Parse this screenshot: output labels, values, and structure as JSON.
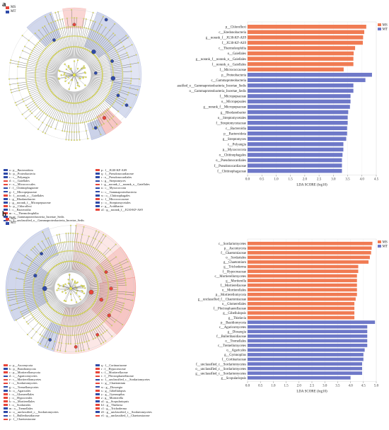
{
  "colors": {
    "MS": "#f07b53",
    "MT": "#6e78c8"
  },
  "panel_a": {
    "letter": "a",
    "legend": [
      {
        "label": "MS",
        "color": "#e8463a"
      },
      {
        "label": "MT",
        "color": "#2f4aa8"
      }
    ],
    "key_left": [
      {
        "text": "a : p__Bacteroidota",
        "group": "MT"
      },
      {
        "text": "b : p__Proteobacteria",
        "group": "MT"
      },
      {
        "text": "c : c__Polyangia",
        "group": "MT"
      },
      {
        "text": "d : c__Gaiellales",
        "group": "MS"
      },
      {
        "text": "e : o__Micrococcales",
        "group": "MS"
      },
      {
        "text": "f : f__Chitinophagaceae",
        "group": "MT"
      },
      {
        "text": "g : f__Micropepsaceae",
        "group": "MT"
      },
      {
        "text": "h : f__norank_o__Gaiellales",
        "group": "MS"
      },
      {
        "text": "i : g__Rhodanobacter",
        "group": "MT"
      },
      {
        "text": "j : g__norank_f__Micropepsaceae",
        "group": "MT"
      },
      {
        "text": "k : p__Chloroflexi",
        "group": "MS"
      },
      {
        "text": "l : c__Bacteroidia",
        "group": "MT"
      },
      {
        "text": "m : c__Thermoleophilia",
        "group": "MS"
      },
      {
        "text": "n : o__Gammaproteobacteria_Incertae_Sedis",
        "group": "MT"
      },
      {
        "text": "o : f__unclassified_o__Gammaproteobacteria_Incertae_Sedis",
        "group": "MT"
      }
    ],
    "key_right": [
      {
        "text": "p : f__JG30-KF-AS9",
        "group": "MS"
      },
      {
        "text": "q : f__Pseudonocardiaceae",
        "group": "MT"
      },
      {
        "text": "r : o__Pseudonocardiales",
        "group": "MT"
      },
      {
        "text": "s : g__Streptomyces",
        "group": "MT"
      },
      {
        "text": "t : g__norank_f__norank_o__Gaiellales",
        "group": "MS"
      },
      {
        "text": "u : c__Myxococcota",
        "group": "MT"
      },
      {
        "text": "v : c__Gammaproteobacteria",
        "group": "MT"
      },
      {
        "text": "w : o__Chitinophagales",
        "group": "MT"
      },
      {
        "text": "x : f__Micrococcaceae",
        "group": "MS"
      },
      {
        "text": "y : o__Streptomycetales",
        "group": "MT"
      },
      {
        "text": "z : g__Acidibacter",
        "group": "MT"
      },
      {
        "text": "a1 : g__norank_f__JG30-KF-AS9",
        "group": "MS"
      }
    ]
  },
  "panel_b": {
    "letter": "b",
    "legend": [
      {
        "label": "MS",
        "color": "#e8463a"
      },
      {
        "label": "MT",
        "color": "#2f4aa8"
      }
    ],
    "key_left": [
      {
        "text": "a : p__Ascomycota",
        "group": "MS"
      },
      {
        "text": "b : p__Basidiomycota",
        "group": "MT"
      },
      {
        "text": "c : p__Mortierellomycota",
        "group": "MS"
      },
      {
        "text": "d : c__Agaricomycetes",
        "group": "MT"
      },
      {
        "text": "e : c__Mortierellomycetes",
        "group": "MS"
      },
      {
        "text": "f : c__Sordariomycetes",
        "group": "MS"
      },
      {
        "text": "g : c__Tremellomycetes",
        "group": "MT"
      },
      {
        "text": "h : o__Agaricales",
        "group": "MT"
      },
      {
        "text": "i : o__Glomerellales",
        "group": "MS"
      },
      {
        "text": "j : o__Hypocreales",
        "group": "MS"
      },
      {
        "text": "k : o__Mortierellales",
        "group": "MS"
      },
      {
        "text": "l : o__Sordariales",
        "group": "MS"
      },
      {
        "text": "m : o__Tremellales",
        "group": "MT"
      },
      {
        "text": "n : o__unclassified_c__Sordariomycetes",
        "group": "MT"
      },
      {
        "text": "o : f__Bulleribasidiaceae",
        "group": "MT"
      },
      {
        "text": "p : f__Chaetomiaceae",
        "group": "MS"
      }
    ],
    "key_right": [
      {
        "text": "q : f__Cortinariaceae",
        "group": "MT"
      },
      {
        "text": "r : f__Hypocreaceae",
        "group": "MS"
      },
      {
        "text": "s : f__Mortierellaceae",
        "group": "MS"
      },
      {
        "text": "t : f__Plectosphaerellaceae",
        "group": "MS"
      },
      {
        "text": "u : f__unclassified_c__Sordariomycetes",
        "group": "MT"
      },
      {
        "text": "v : g__Chaetomium",
        "group": "MS"
      },
      {
        "text": "w : g__Dioszegia",
        "group": "MT"
      },
      {
        "text": "x : g__Gibellulopsis",
        "group": "MS"
      },
      {
        "text": "y : g__Gymnopilus",
        "group": "MT"
      },
      {
        "text": "z : g__Mortierella",
        "group": "MS"
      },
      {
        "text": "a1 : g__Scopulariopsis",
        "group": "MT"
      },
      {
        "text": "b1 : g__Thielavia",
        "group": "MS"
      },
      {
        "text": "c1 : g__Trichoderma",
        "group": "MS"
      },
      {
        "text": "d1 : g__unclassified_c__Sordariomycetes",
        "group": "MT"
      },
      {
        "text": "e1 : g__unclassified_f__Chaetomiaceae",
        "group": "MS"
      }
    ]
  },
  "chart_data": [
    {
      "type": "bar",
      "orientation": "horizontal",
      "xlabel": "LDA SCORE (log10)",
      "xlim": [
        0,
        4.5
      ],
      "xticks": [
        0.0,
        0.5,
        1.0,
        1.5,
        2.0,
        2.5,
        3.0,
        3.5,
        4.0,
        4.5
      ],
      "xtick_labels": [
        "0.0",
        "0.5",
        "1.0",
        "1.5",
        "2.0",
        "2.5",
        "3.0",
        "3.5",
        "4.0",
        "4.5"
      ],
      "legend": [
        "MS",
        "MT"
      ],
      "legend_placement": "top-right",
      "bars": [
        {
          "label": "p__Chloroflexi",
          "value": 4.15,
          "group": "MS"
        },
        {
          "label": "c__Ktedonobacteria",
          "value": 4.08,
          "group": "MS"
        },
        {
          "label": "g__norank_f__JG30-KF-AS9",
          "value": 4.04,
          "group": "MS"
        },
        {
          "label": "f__JG30-KF-AS9",
          "value": 4.03,
          "group": "MS"
        },
        {
          "label": "c__Thermoleophilia",
          "value": 3.76,
          "group": "MS"
        },
        {
          "label": "o__Gaiellales",
          "value": 3.71,
          "group": "MS"
        },
        {
          "label": "g__norank_f__norank_o__Gaiellales",
          "value": 3.7,
          "group": "MS"
        },
        {
          "label": "f__norank_o__Gaiellales",
          "value": 3.7,
          "group": "MS"
        },
        {
          "label": "f__Micrococcaceae",
          "value": 3.36,
          "group": "MS"
        },
        {
          "label": "p__Proteobacteria",
          "value": 4.35,
          "group": "MT"
        },
        {
          "label": "c__Gammaproteobacteria",
          "value": 4.12,
          "group": "MT"
        },
        {
          "label": "f__unclassified_o__Gammaproteobacteria_Incertae_Sedis",
          "value": 3.7,
          "group": "MT"
        },
        {
          "label": "o__Gammaproteobacteria_Incertae_Sedis",
          "value": 3.7,
          "group": "MT"
        },
        {
          "label": "f__Micropepsaceae",
          "value": 3.6,
          "group": "MT"
        },
        {
          "label": "o__Micropepsales",
          "value": 3.6,
          "group": "MT"
        },
        {
          "label": "g__norank_f__Micropepsaceae",
          "value": 3.58,
          "group": "MT"
        },
        {
          "label": "g__Rhodanobacter",
          "value": 3.52,
          "group": "MT"
        },
        {
          "label": "o__Streptomycetales",
          "value": 3.5,
          "group": "MT"
        },
        {
          "label": "f__Streptomycetaceae",
          "value": 3.5,
          "group": "MT"
        },
        {
          "label": "c__Bacteroidia",
          "value": 3.48,
          "group": "MT"
        },
        {
          "label": "p__Bacteroidota",
          "value": 3.48,
          "group": "MT"
        },
        {
          "label": "g__Streptomyces",
          "value": 3.45,
          "group": "MT"
        },
        {
          "label": "c__Polyangia",
          "value": 3.35,
          "group": "MT"
        },
        {
          "label": "p__Myxococcota",
          "value": 3.35,
          "group": "MT"
        },
        {
          "label": "o__Chitinophagales",
          "value": 3.32,
          "group": "MT"
        },
        {
          "label": "o__Pseudonocardiales",
          "value": 3.3,
          "group": "MT"
        },
        {
          "label": "f__Pseudonocardiaceae",
          "value": 3.3,
          "group": "MT"
        },
        {
          "label": "f__Chitinophagaceae",
          "value": 3.3,
          "group": "MT"
        }
      ]
    },
    {
      "type": "bar",
      "orientation": "horizontal",
      "xlabel": "LDA SCORE (log10)",
      "xlim": [
        0,
        5.0
      ],
      "xticks": [
        0.0,
        0.5,
        1.0,
        1.5,
        2.0,
        2.5,
        3.0,
        3.5,
        4.0,
        4.5,
        5.0
      ],
      "xtick_labels": [
        "0.0",
        "0.5",
        "1.0",
        "1.5",
        "2.0",
        "2.5",
        "3.0",
        "3.5",
        "4.0",
        "4.5",
        "5.0"
      ],
      "legend": [
        "MS",
        "MT"
      ],
      "legend_placement": "top-right",
      "bars": [
        {
          "label": "c__Sordariomycetes",
          "value": 4.85,
          "group": "MS"
        },
        {
          "label": "p__Ascomycota",
          "value": 4.82,
          "group": "MS"
        },
        {
          "label": "f__Chaetomiaceae",
          "value": 4.8,
          "group": "MS"
        },
        {
          "label": "o__Sordariales",
          "value": 4.75,
          "group": "MS"
        },
        {
          "label": "g__Chaetomium",
          "value": 4.7,
          "group": "MS"
        },
        {
          "label": "g__Trichoderma",
          "value": 4.3,
          "group": "MS"
        },
        {
          "label": "f__Hypocreaceae",
          "value": 4.3,
          "group": "MS"
        },
        {
          "label": "c__Mortierellomycetes",
          "value": 4.25,
          "group": "MS"
        },
        {
          "label": "g__Mortierella",
          "value": 4.25,
          "group": "MS"
        },
        {
          "label": "f__Mortierellaceae",
          "value": 4.25,
          "group": "MS"
        },
        {
          "label": "o__Mortierellales",
          "value": 4.25,
          "group": "MS"
        },
        {
          "label": "p__Mortierellomycota",
          "value": 4.25,
          "group": "MS"
        },
        {
          "label": "g__unclassified_f__Chaetomiaceae",
          "value": 4.2,
          "group": "MS"
        },
        {
          "label": "o__Glomerellales",
          "value": 4.15,
          "group": "MS"
        },
        {
          "label": "f__Plectosphaerellaceae",
          "value": 4.15,
          "group": "MS"
        },
        {
          "label": "g__Gibellulopsis",
          "value": 4.15,
          "group": "MS"
        },
        {
          "label": "g__Thielavia",
          "value": 4.15,
          "group": "MS"
        },
        {
          "label": "p__Basidiomycota",
          "value": 4.95,
          "group": "MT"
        },
        {
          "label": "c__Agaricomycetes",
          "value": 4.65,
          "group": "MT"
        },
        {
          "label": "g__Dioszegia",
          "value": 4.65,
          "group": "MT"
        },
        {
          "label": "f__Bulleribasidiaceae",
          "value": 4.65,
          "group": "MT"
        },
        {
          "label": "o__Tremellales",
          "value": 4.65,
          "group": "MT"
        },
        {
          "label": "c__Tremellomycetes",
          "value": 4.65,
          "group": "MT"
        },
        {
          "label": "o__Agaricales",
          "value": 4.55,
          "group": "MT"
        },
        {
          "label": "g__Gymnopilus",
          "value": 4.5,
          "group": "MT"
        },
        {
          "label": "f__Cortinariaceae",
          "value": 4.5,
          "group": "MT"
        },
        {
          "label": "f__unclassified_c__Sordariomycetes",
          "value": 4.45,
          "group": "MT"
        },
        {
          "label": "o__unclassified_c__Sordariomycetes",
          "value": 4.45,
          "group": "MT"
        },
        {
          "label": "g__unclassified_c__Sordariomycetes",
          "value": 4.45,
          "group": "MT"
        },
        {
          "label": "g__Scopulariopsis",
          "value": 4.0,
          "group": "MT"
        }
      ]
    }
  ]
}
